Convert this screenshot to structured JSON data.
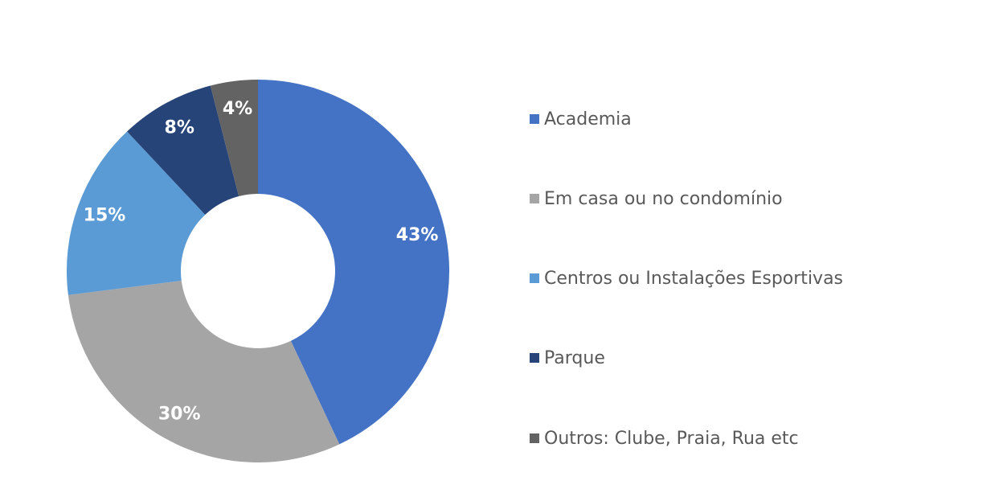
{
  "chart_data": {
    "type": "pie",
    "variant": "donut",
    "legend_position": "right",
    "slices": [
      {
        "name": "Academia",
        "value": 43,
        "label": "43%",
        "color": "#4472C4"
      },
      {
        "name": "Em casa ou no condomínio",
        "value": 30,
        "label": "30%",
        "color": "#A5A5A5"
      },
      {
        "name": "Centros ou Instalações Esportivas",
        "value": 15,
        "label": "15%",
        "color": "#5B9BD5"
      },
      {
        "name": "Parque",
        "value": 8,
        "label": "8%",
        "color": "#264478"
      },
      {
        "name": "Outros: Clube, Praia, Rua etc",
        "value": 4,
        "label": "4%",
        "color": "#636363"
      }
    ]
  }
}
